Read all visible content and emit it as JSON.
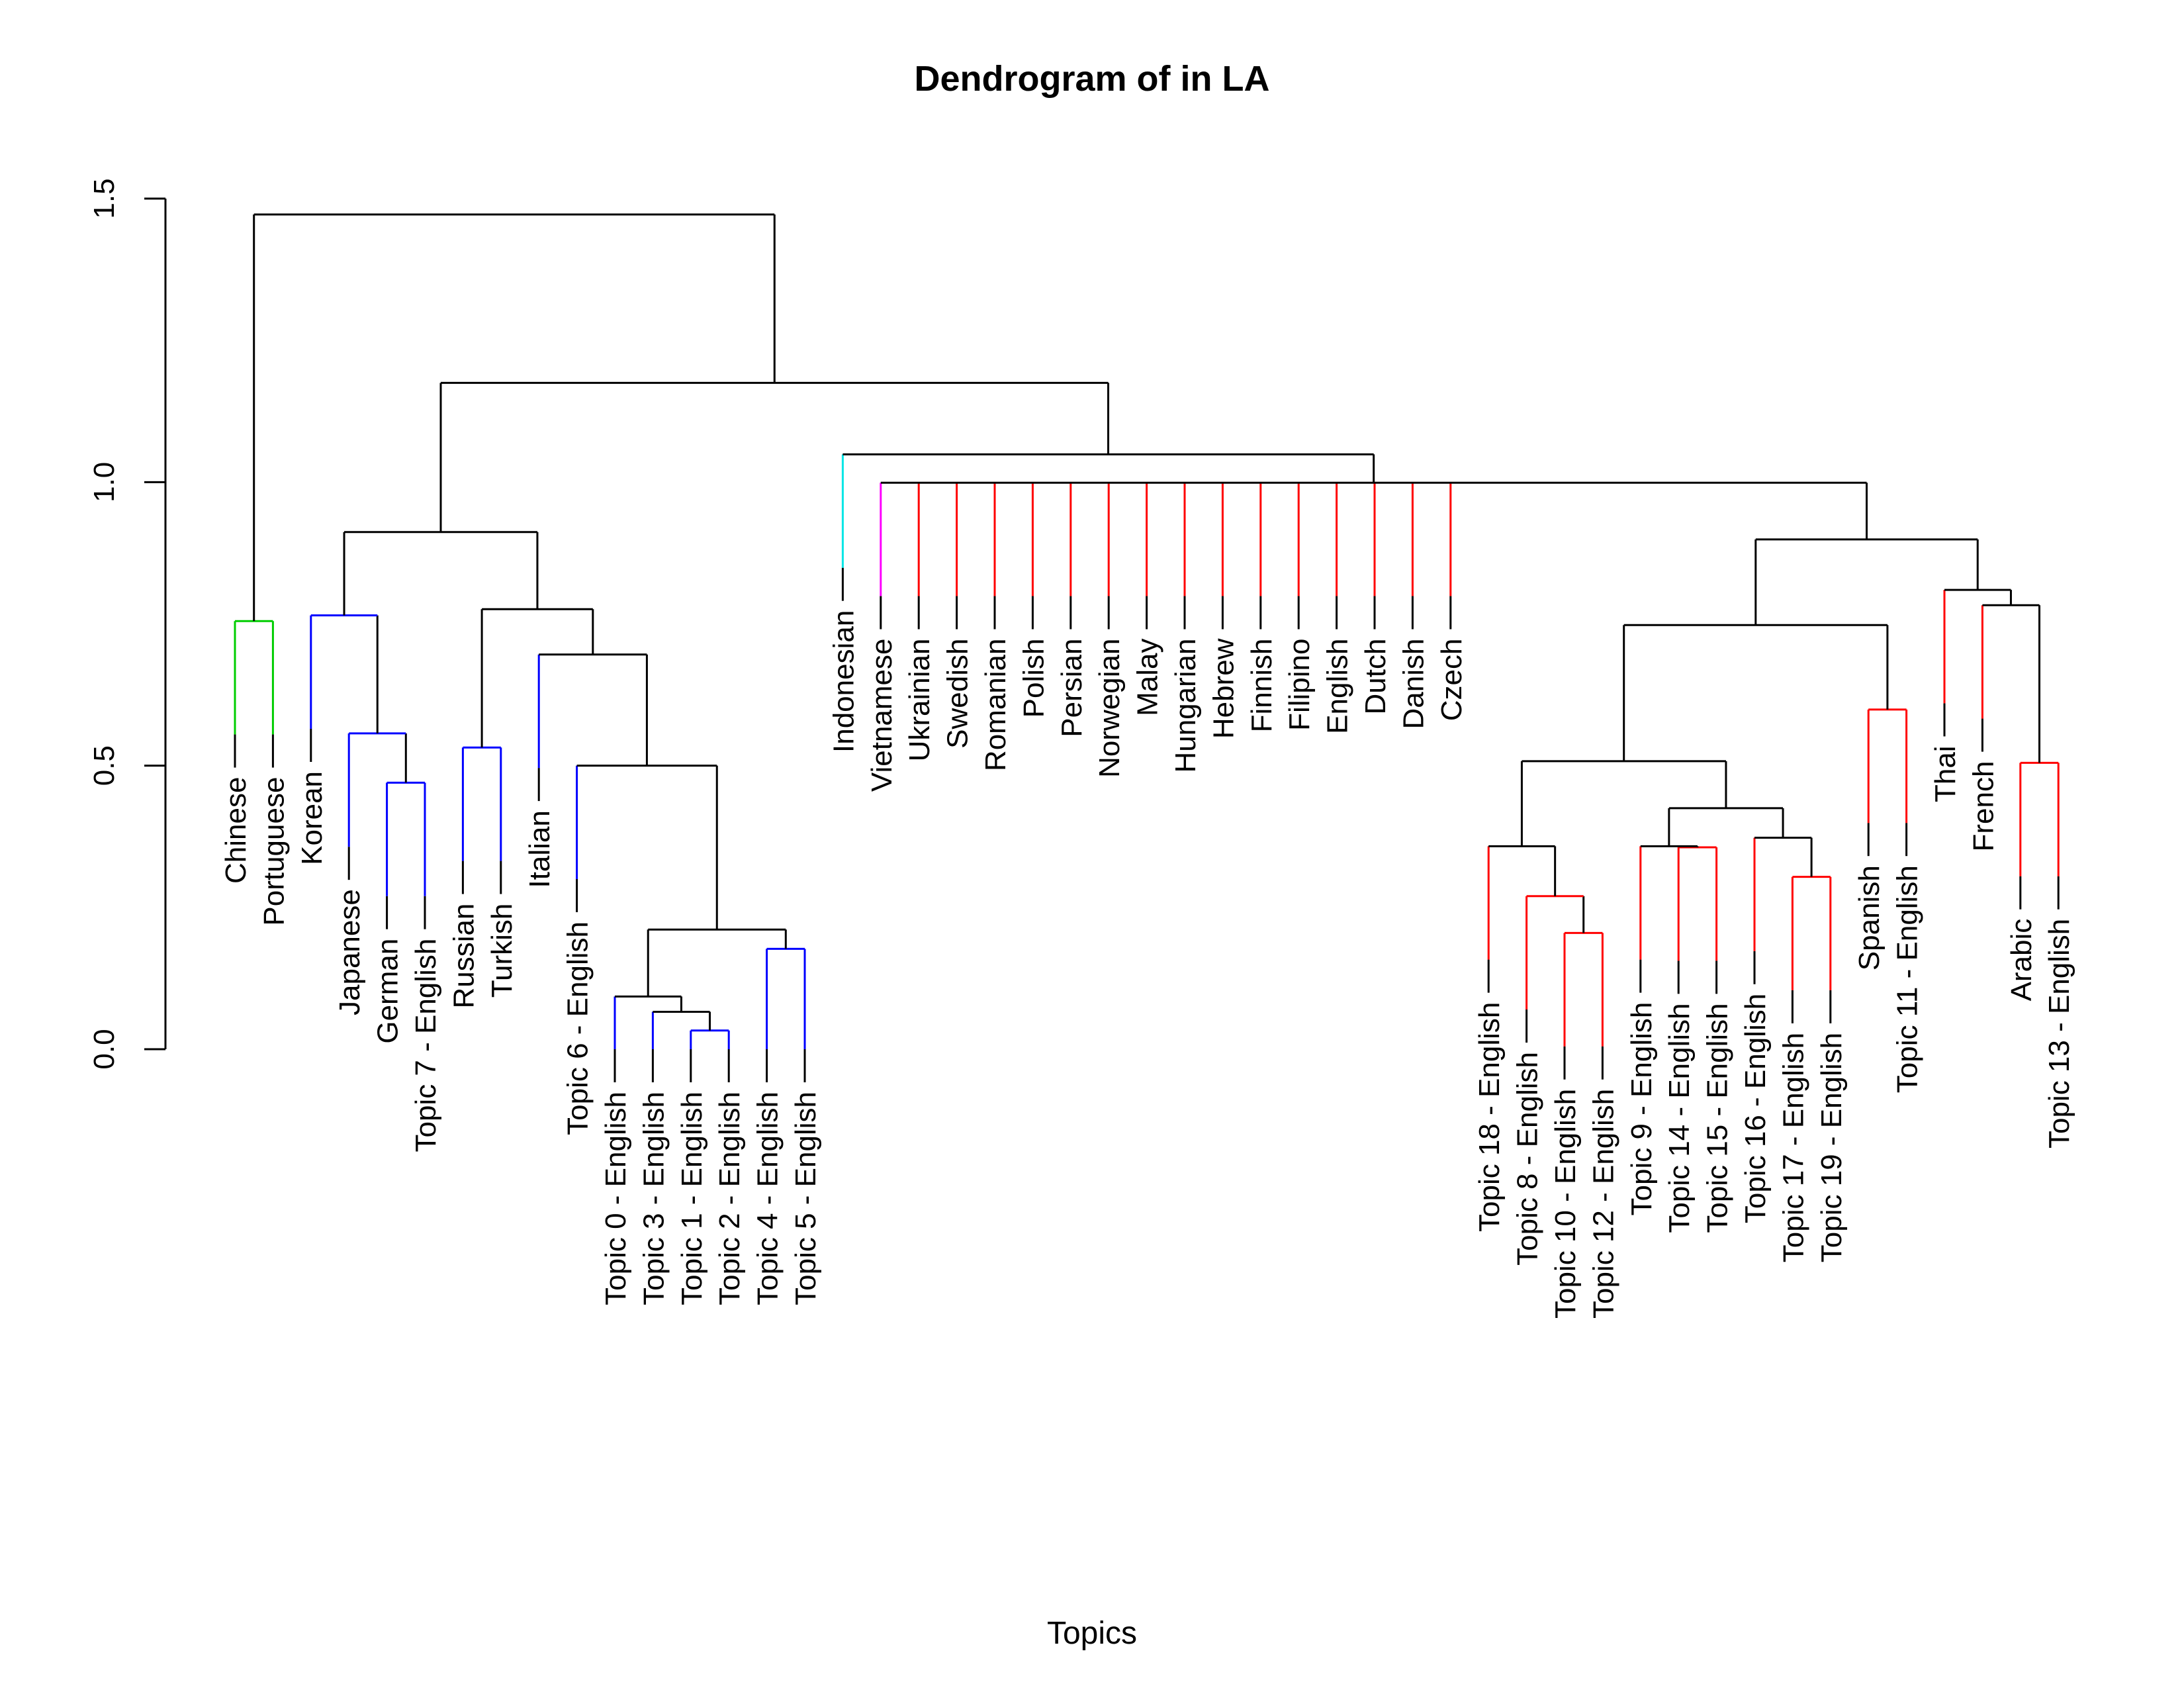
{
  "chart_data": {
    "type": "dendrogram",
    "title": "Dendrogram of in LA",
    "xlabel": "Topics",
    "ylabel": "",
    "ylim": [
      0,
      1.5
    ],
    "yticks": [
      "0.0",
      "0.5",
      "1.0",
      "1.5"
    ],
    "leaves": [
      {
        "label": "Chinese",
        "color": "#00cd00"
      },
      {
        "label": "Portuguese",
        "color": "#00cd00"
      },
      {
        "label": "Korean",
        "color": "#0000ff"
      },
      {
        "label": "Japanese",
        "color": "#0000ff"
      },
      {
        "label": "German",
        "color": "#0000ff"
      },
      {
        "label": "Topic 7 - English",
        "color": "#0000ff"
      },
      {
        "label": "Russian",
        "color": "#0000ff"
      },
      {
        "label": "Turkish",
        "color": "#0000ff"
      },
      {
        "label": "Italian",
        "color": "#0000ff"
      },
      {
        "label": "Topic 6 - English",
        "color": "#0000ff"
      },
      {
        "label": "Topic 0 - English",
        "color": "#0000ff"
      },
      {
        "label": "Topic 3 - English",
        "color": "#0000ff"
      },
      {
        "label": "Topic 1 - English",
        "color": "#0000ff"
      },
      {
        "label": "Topic 2 - English",
        "color": "#0000ff"
      },
      {
        "label": "Topic 4 - English",
        "color": "#0000ff"
      },
      {
        "label": "Topic 5 - English",
        "color": "#0000ff"
      },
      {
        "label": "Indonesian",
        "color": "#00e5e5"
      },
      {
        "label": "Vietnamese",
        "color": "#ff00ff"
      },
      {
        "label": "Ukrainian",
        "color": "#ff0000"
      },
      {
        "label": "Swedish",
        "color": "#ff0000"
      },
      {
        "label": "Romanian",
        "color": "#ff0000"
      },
      {
        "label": "Polish",
        "color": "#ff0000"
      },
      {
        "label": "Persian",
        "color": "#ff0000"
      },
      {
        "label": "Norwegian",
        "color": "#ff0000"
      },
      {
        "label": "Malay",
        "color": "#ff0000"
      },
      {
        "label": "Hungarian",
        "color": "#ff0000"
      },
      {
        "label": "Hebrew",
        "color": "#ff0000"
      },
      {
        "label": "Finnish",
        "color": "#ff0000"
      },
      {
        "label": "Filipino",
        "color": "#ff0000"
      },
      {
        "label": "English",
        "color": "#ff0000"
      },
      {
        "label": "Dutch",
        "color": "#ff0000"
      },
      {
        "label": "Danish",
        "color": "#ff0000"
      },
      {
        "label": "Czech",
        "color": "#ff0000"
      },
      {
        "label": "Topic 18 - English",
        "color": "#ff0000"
      },
      {
        "label": "Topic 8 - English",
        "color": "#ff0000"
      },
      {
        "label": "Topic 10 - English",
        "color": "#ff0000"
      },
      {
        "label": "Topic 12 - English",
        "color": "#ff0000"
      },
      {
        "label": "Topic 9 - English",
        "color": "#ff0000"
      },
      {
        "label": "Topic 14 - English",
        "color": "#ff0000"
      },
      {
        "label": "Topic 15 - English",
        "color": "#ff0000"
      },
      {
        "label": "Topic 16 - English",
        "color": "#ff0000"
      },
      {
        "label": "Topic 17 - English",
        "color": "#ff0000"
      },
      {
        "label": "Topic 19 - English",
        "color": "#ff0000"
      },
      {
        "label": "Spanish",
        "color": "#ff0000"
      },
      {
        "label": "Topic 11 - English",
        "color": "#ff0000"
      },
      {
        "label": "Thai",
        "color": "#ff0000"
      },
      {
        "label": "French",
        "color": "#ff0000"
      },
      {
        "label": "Arabic",
        "color": "#ff0000"
      },
      {
        "label": "Topic 13 - English",
        "color": "#ff0000"
      }
    ],
    "merges": [
      {
        "children": [
          "Chinese",
          "Portuguese"
        ],
        "height": 0.755,
        "color": "#00cd00"
      },
      {
        "children": [
          "Topic 1 - English",
          "Topic 2 - English"
        ],
        "height": 0.033,
        "color": "#0000ff"
      },
      {
        "children": [
          "Topic 3 - English",
          "m2"
        ],
        "height": 0.066,
        "color": "#000000"
      },
      {
        "children": [
          "Topic 0 - English",
          "m3"
        ],
        "height": 0.093,
        "color": "#000000"
      },
      {
        "children": [
          "Topic 4 - English",
          "Topic 5 - English"
        ],
        "height": 0.177,
        "color": "#0000ff"
      },
      {
        "children": [
          "m4",
          "m5"
        ],
        "height": 0.211,
        "color": "#000000"
      },
      {
        "children": [
          "Topic 6 - English",
          "m6"
        ],
        "height": 0.5,
        "color": "#000000"
      },
      {
        "children": [
          "Italian",
          "m7"
        ],
        "height": 0.696,
        "color": "#000000"
      },
      {
        "children": [
          "Russian",
          "Turkish"
        ],
        "height": 0.532,
        "color": "#0000ff"
      },
      {
        "children": [
          "m9",
          "m8"
        ],
        "height": 0.776,
        "color": "#000000"
      },
      {
        "children": [
          "German",
          "Topic 7 - English"
        ],
        "height": 0.47,
        "color": "#0000ff"
      },
      {
        "children": [
          "Japanese",
          "m11"
        ],
        "height": 0.557,
        "color": "#0000ff"
      },
      {
        "children": [
          "Korean",
          "m12"
        ],
        "height": 0.765,
        "color": "#0000ff"
      },
      {
        "children": [
          "m13",
          "m10"
        ],
        "height": 0.912,
        "color": "#000000"
      },
      {
        "children": [
          "Topic 10 - English",
          "Topic 12 - English"
        ],
        "height": 0.205,
        "color": "#ff0000"
      },
      {
        "children": [
          "Topic 8 - English",
          "m15"
        ],
        "height": 0.27,
        "color": "#ff0000"
      },
      {
        "children": [
          "Topic 18 - English",
          "m16"
        ],
        "height": 0.358,
        "color": "#000000"
      },
      {
        "children": [
          "Topic 14 - English",
          "Topic 15 - English"
        ],
        "height": 0.356,
        "color": "#ff0000"
      },
      {
        "children": [
          "Topic 9 - English",
          "m18"
        ],
        "height": 0.358,
        "color": "#000000"
      },
      {
        "children": [
          "Topic 17 - English",
          "Topic 19 - English"
        ],
        "height": 0.304,
        "color": "#ff0000"
      },
      {
        "children": [
          "Topic 16 - English",
          "m20"
        ],
        "height": 0.373,
        "color": "#000000"
      },
      {
        "children": [
          "m19",
          "m21"
        ],
        "height": 0.425,
        "color": "#000000"
      },
      {
        "children": [
          "m17",
          "m22"
        ],
        "height": 0.508,
        "color": "#000000"
      },
      {
        "children": [
          "Spanish",
          "Topic 11 - English"
        ],
        "height": 0.599,
        "color": "#ff0000"
      },
      {
        "children": [
          "m23",
          "m24"
        ],
        "height": 0.748,
        "color": "#000000"
      },
      {
        "children": [
          "Arabic",
          "Topic 13 - English"
        ],
        "height": 0.505,
        "color": "#ff0000"
      },
      {
        "children": [
          "French",
          "m26"
        ],
        "height": 0.783,
        "color": "#000000"
      },
      {
        "children": [
          "Thai",
          "m27"
        ],
        "height": 0.81,
        "color": "#000000"
      },
      {
        "children": [
          "m25",
          "m28"
        ],
        "height": 0.899,
        "color": "#000000"
      },
      {
        "children": [
          "Vietnamese",
          "Ukrainian",
          "Swedish",
          "Romanian",
          "Polish",
          "Persian",
          "Norwegian",
          "Malay",
          "Hungarian",
          "Hebrew",
          "Finnish",
          "Filipino",
          "English",
          "Dutch",
          "Danish",
          "Czech",
          "m29"
        ],
        "height": 0.999,
        "color": "#000000"
      },
      {
        "children": [
          "Indonesian",
          "m30"
        ],
        "height": 1.049,
        "color": "#000000"
      },
      {
        "children": [
          "m14",
          "m31"
        ],
        "height": 1.175,
        "color": "#000000"
      },
      {
        "children": [
          "m1",
          "m32"
        ],
        "height": 1.472,
        "color": "#000000"
      }
    ]
  }
}
